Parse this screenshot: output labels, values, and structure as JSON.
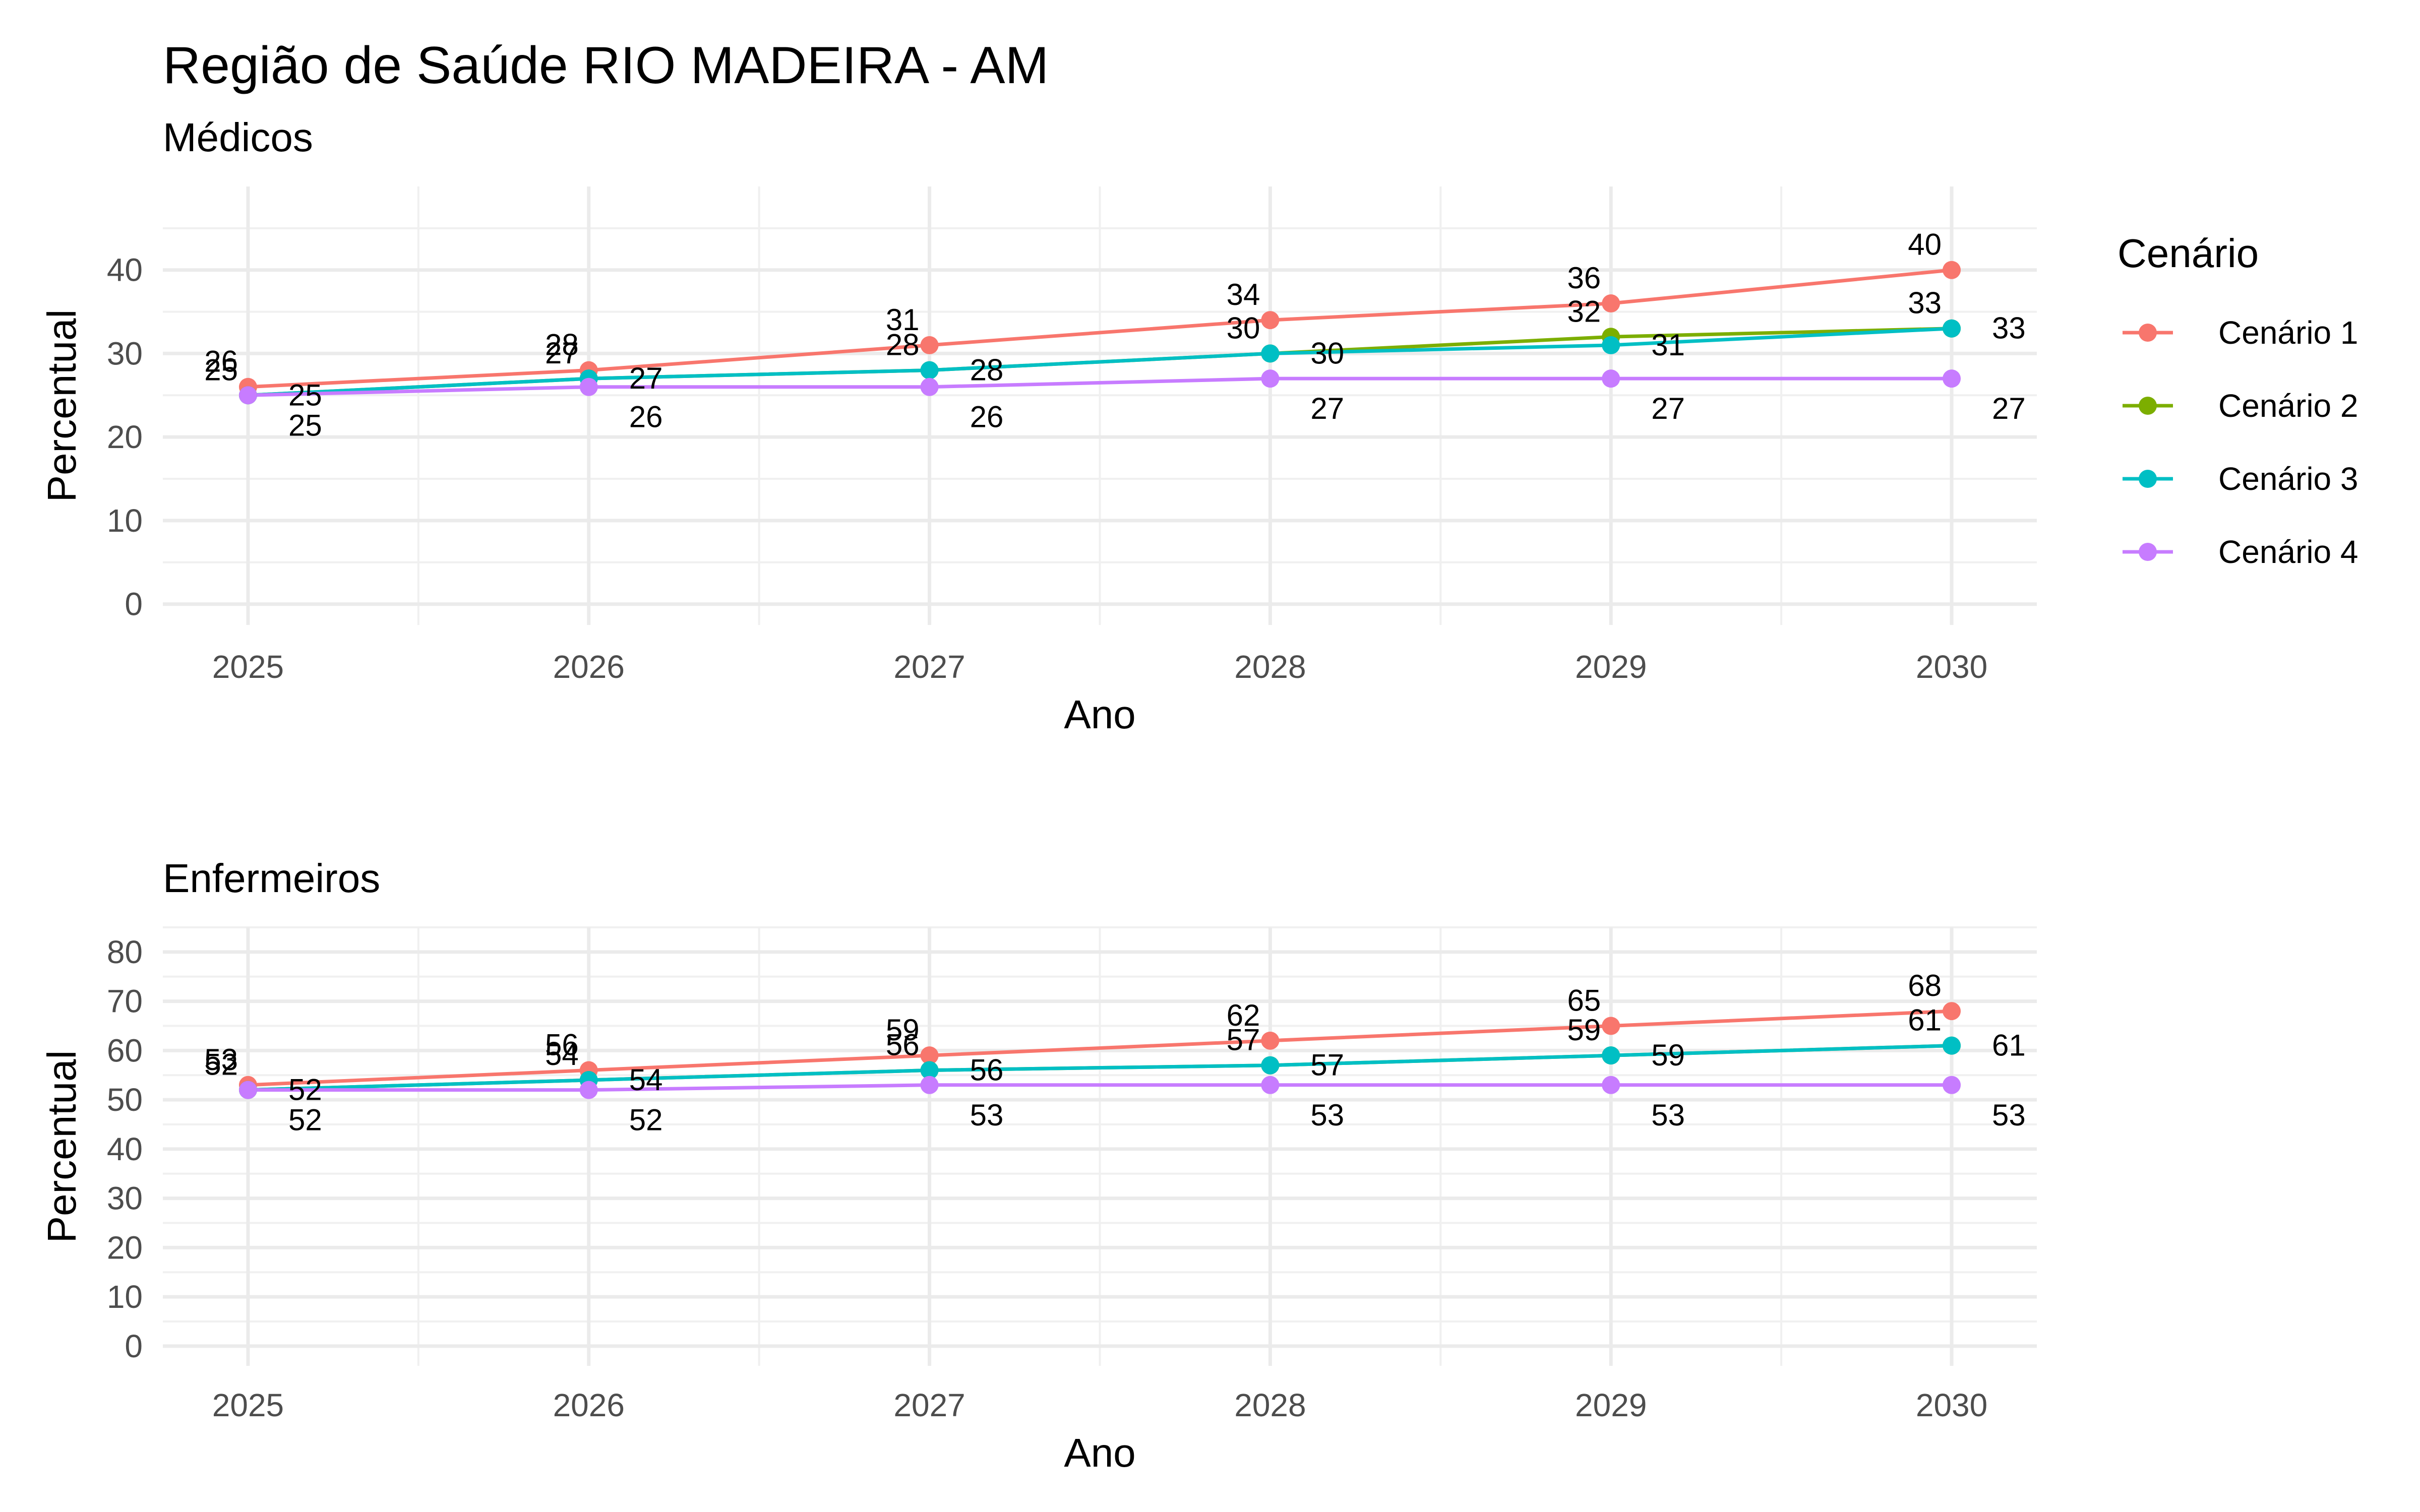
{
  "title": "Região de Saúde RIO MADEIRA - AM",
  "legend": {
    "title": "Cenário",
    "position": "right",
    "items": [
      {
        "label": "Cenário 1",
        "color": "#F8766D"
      },
      {
        "label": "Cenário 2",
        "color": "#7CAE00"
      },
      {
        "label": "Cenário 3",
        "color": "#00BFC4"
      },
      {
        "label": "Cenário 4",
        "color": "#C77CFF"
      }
    ]
  },
  "chart_data": [
    {
      "type": "line",
      "subtitle": "Médicos",
      "xlabel": "Ano",
      "ylabel": "Percentual",
      "x": [
        2025,
        2026,
        2027,
        2028,
        2029,
        2030
      ],
      "x_tick_labels": [
        "2025",
        "2026",
        "2027",
        "2028",
        "2029",
        "2030"
      ],
      "y_ticks": [
        0,
        10,
        20,
        30,
        40
      ],
      "y_tick_labels": [
        "0",
        "10",
        "20",
        "30",
        "40"
      ],
      "ylim": [
        -2.5,
        50
      ],
      "grid": true,
      "series": [
        {
          "name": "Cenário 1",
          "values": [
            26,
            28,
            31,
            34,
            36,
            40
          ],
          "labels": [
            "26",
            "28",
            "31",
            "34",
            "36",
            "40"
          ]
        },
        {
          "name": "Cenário 2",
          "values": [
            25,
            27,
            28,
            30,
            32,
            33
          ],
          "labels": [
            "25",
            "27",
            "28",
            "30",
            "32",
            "33"
          ]
        },
        {
          "name": "Cenário 3",
          "values": [
            25,
            27,
            28,
            30,
            31,
            33
          ],
          "labels": [
            "25",
            "27",
            "28",
            "30",
            "31",
            "33"
          ]
        },
        {
          "name": "Cenário 4",
          "values": [
            25,
            26,
            26,
            27,
            27,
            27
          ],
          "labels": [
            "25",
            "26",
            "26",
            "27",
            "27",
            "27"
          ]
        }
      ]
    },
    {
      "type": "line",
      "subtitle": "Enfermeiros",
      "xlabel": "Ano",
      "ylabel": "Percentual",
      "x": [
        2025,
        2026,
        2027,
        2028,
        2029,
        2030
      ],
      "x_tick_labels": [
        "2025",
        "2026",
        "2027",
        "2028",
        "2029",
        "2030"
      ],
      "y_ticks": [
        0,
        10,
        20,
        30,
        40,
        50,
        60,
        70,
        80
      ],
      "y_tick_labels": [
        "0",
        "10",
        "20",
        "30",
        "40",
        "50",
        "60",
        "70",
        "80"
      ],
      "ylim": [
        -4,
        85
      ],
      "grid": true,
      "series": [
        {
          "name": "Cenário 1",
          "values": [
            53,
            56,
            59,
            62,
            65,
            68
          ],
          "labels": [
            "53",
            "56",
            "59",
            "62",
            "65",
            "68"
          ]
        },
        {
          "name": "Cenário 2",
          "values": [
            52,
            54,
            56,
            57,
            59,
            61
          ],
          "labels": [
            "52",
            "54",
            "56",
            "57",
            "59",
            "61"
          ]
        },
        {
          "name": "Cenário 3",
          "values": [
            52,
            54,
            56,
            57,
            59,
            61
          ],
          "labels": [
            "52",
            "54",
            "56",
            "57",
            "59",
            "61"
          ]
        },
        {
          "name": "Cenário 4",
          "values": [
            52,
            52,
            53,
            53,
            53,
            53
          ],
          "labels": [
            "52",
            "52",
            "53",
            "53",
            "53",
            "53"
          ]
        }
      ]
    }
  ]
}
